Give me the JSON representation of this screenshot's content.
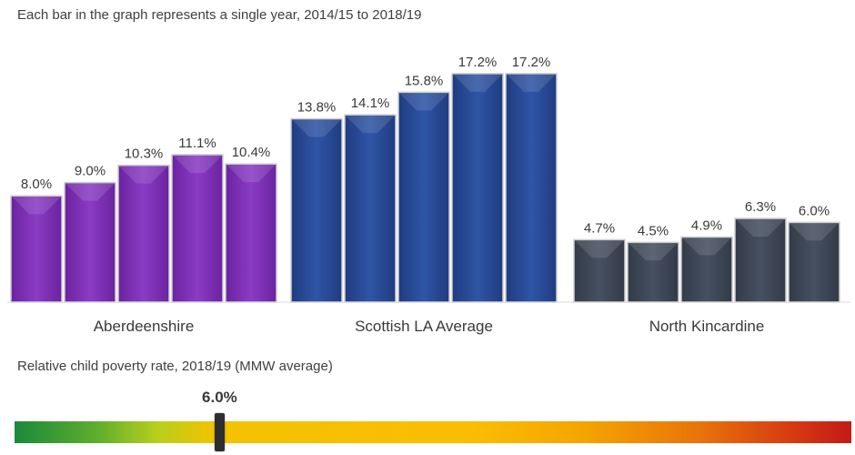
{
  "header": {
    "caption": "Each bar in the graph represents a single year, 2014/15 to 2018/19"
  },
  "chart_data": {
    "type": "bar",
    "categories": [
      "Aberdeenshire",
      "Scottish LA Average",
      "North Kincardine"
    ],
    "series": [
      {
        "values": [
          8.0,
          13.8,
          4.7
        ]
      },
      {
        "values": [
          9.0,
          14.1,
          4.5
        ]
      },
      {
        "values": [
          10.3,
          15.8,
          4.9
        ]
      },
      {
        "values": [
          11.1,
          17.2,
          6.3
        ]
      },
      {
        "values": [
          10.4,
          17.2,
          6.0
        ]
      }
    ],
    "data_labels": [
      [
        "8.0%",
        "9.0%",
        "10.3%",
        "11.1%",
        "10.4%"
      ],
      [
        "13.8%",
        "14.1%",
        "15.8%",
        "17.2%",
        "17.2%"
      ],
      [
        "4.7%",
        "4.5%",
        "4.9%",
        "6.3%",
        "6.0%"
      ]
    ],
    "group_colors": [
      "#7a2fb0",
      "#27478f",
      "#3a4352"
    ],
    "ylim": [
      0,
      20
    ],
    "grid": false,
    "legend": "none"
  },
  "scale": {
    "caption": "Relative child poverty rate, 2018/19 (MMW average)",
    "value_label": "6.0%",
    "value_fraction": 0.245
  }
}
